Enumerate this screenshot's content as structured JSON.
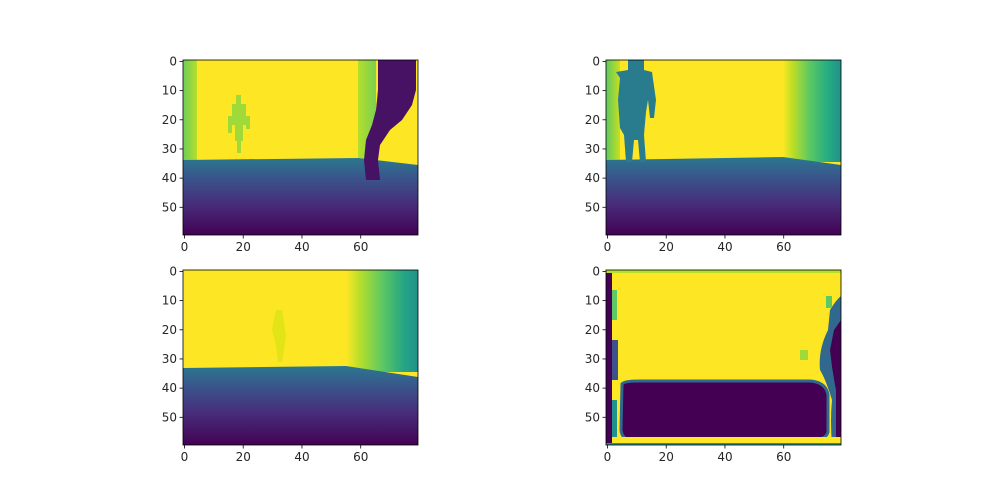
{
  "figure": {
    "colormap": "viridis",
    "colors": {
      "low": "#440154",
      "mid": "#21908d",
      "high": "#fde725",
      "axis": "#000000"
    }
  },
  "chart_data": [
    {
      "type": "heatmap",
      "title": "",
      "xlabel": "",
      "ylabel": "",
      "shape": [
        60,
        80
      ],
      "x_ticks": [
        "0",
        "20",
        "40",
        "60"
      ],
      "y_ticks": [
        "0",
        "10",
        "20",
        "30",
        "40",
        "50"
      ],
      "y_inverted": true,
      "content": "depth map: bright wall with green left edge, small figure at x≈17, dark figure at right edge, floor gradient below row 34"
    },
    {
      "type": "heatmap",
      "title": "",
      "xlabel": "",
      "ylabel": "",
      "shape": [
        60,
        80
      ],
      "x_ticks": [
        "0",
        "20",
        "40",
        "60"
      ],
      "y_ticks": [
        "0",
        "10",
        "20",
        "30",
        "40",
        "50"
      ],
      "y_inverted": true,
      "content": "depth map: teal figure at x≈9, bright wall, right side gradient from yellow to teal, floor gradient below row 34"
    },
    {
      "type": "heatmap",
      "title": "",
      "xlabel": "",
      "ylabel": "",
      "shape": [
        60,
        80
      ],
      "x_ticks": [
        "0",
        "20",
        "40",
        "60"
      ],
      "y_ticks": [
        "0",
        "10",
        "20",
        "30",
        "40",
        "50"
      ],
      "y_inverted": true,
      "content": "depth map: faint figure at x≈32, bright wall, right side gradient from x≈56, floor gradient below row 34"
    },
    {
      "type": "heatmap",
      "title": "",
      "xlabel": "",
      "ylabel": "",
      "shape": [
        60,
        80
      ],
      "x_ticks": [
        "0",
        "20",
        "40",
        "60"
      ],
      "y_ticks": [
        "0",
        "10",
        "20",
        "30",
        "40",
        "50"
      ],
      "y_inverted": true,
      "content": "noisy prediction map: mostly yellow with dark purple block spanning rows ~38-58, cols ~5-77, noisy teal edges"
    }
  ]
}
